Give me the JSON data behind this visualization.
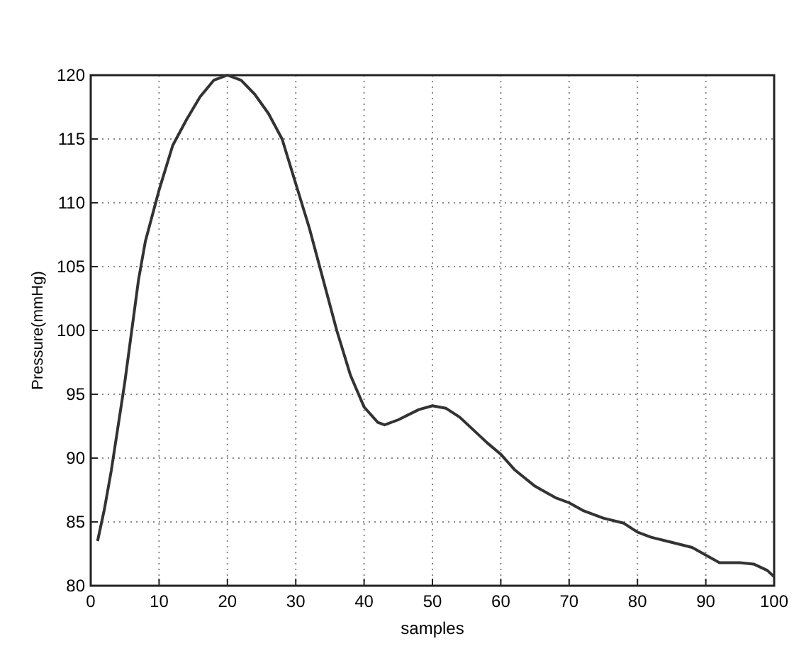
{
  "chart_data": {
    "type": "line",
    "xlabel": "samples",
    "ylabel": "Pressure(mmHg)",
    "xlim": [
      0,
      100
    ],
    "ylim": [
      80,
      120
    ],
    "xticks": [
      0,
      10,
      20,
      30,
      40,
      50,
      60,
      70,
      80,
      90,
      100
    ],
    "yticks": [
      80,
      85,
      90,
      95,
      100,
      105,
      110,
      115,
      120
    ],
    "grid": true,
    "line_style": "solid",
    "marker": "none",
    "series": [
      {
        "color": "#333333",
        "x": [
          1,
          2,
          3,
          4,
          5,
          6,
          7,
          8,
          10,
          12,
          14,
          16,
          18,
          20,
          22,
          24,
          26,
          28,
          30,
          32,
          34,
          36,
          38,
          40,
          42,
          43,
          45,
          48,
          50,
          52,
          54,
          56,
          58,
          60,
          62,
          65,
          68,
          70,
          72,
          75,
          78,
          80,
          82,
          85,
          88,
          90,
          92,
          95,
          97,
          99,
          100
        ],
        "values": [
          83.5,
          86,
          89,
          92.5,
          96,
          100,
          104,
          107,
          111,
          114.5,
          116.5,
          118.3,
          119.6,
          120,
          119.6,
          118.5,
          117,
          115,
          111.5,
          108,
          104,
          100,
          96.5,
          94,
          92.8,
          92.6,
          93,
          93.8,
          94.1,
          93.9,
          93.2,
          92.2,
          91.2,
          90.3,
          89.1,
          87.8,
          86.9,
          86.5,
          85.9,
          85.3,
          84.9,
          84.2,
          83.8,
          83.4,
          83,
          82.4,
          81.8,
          81.8,
          81.7,
          81.2,
          80.7
        ]
      }
    ]
  }
}
